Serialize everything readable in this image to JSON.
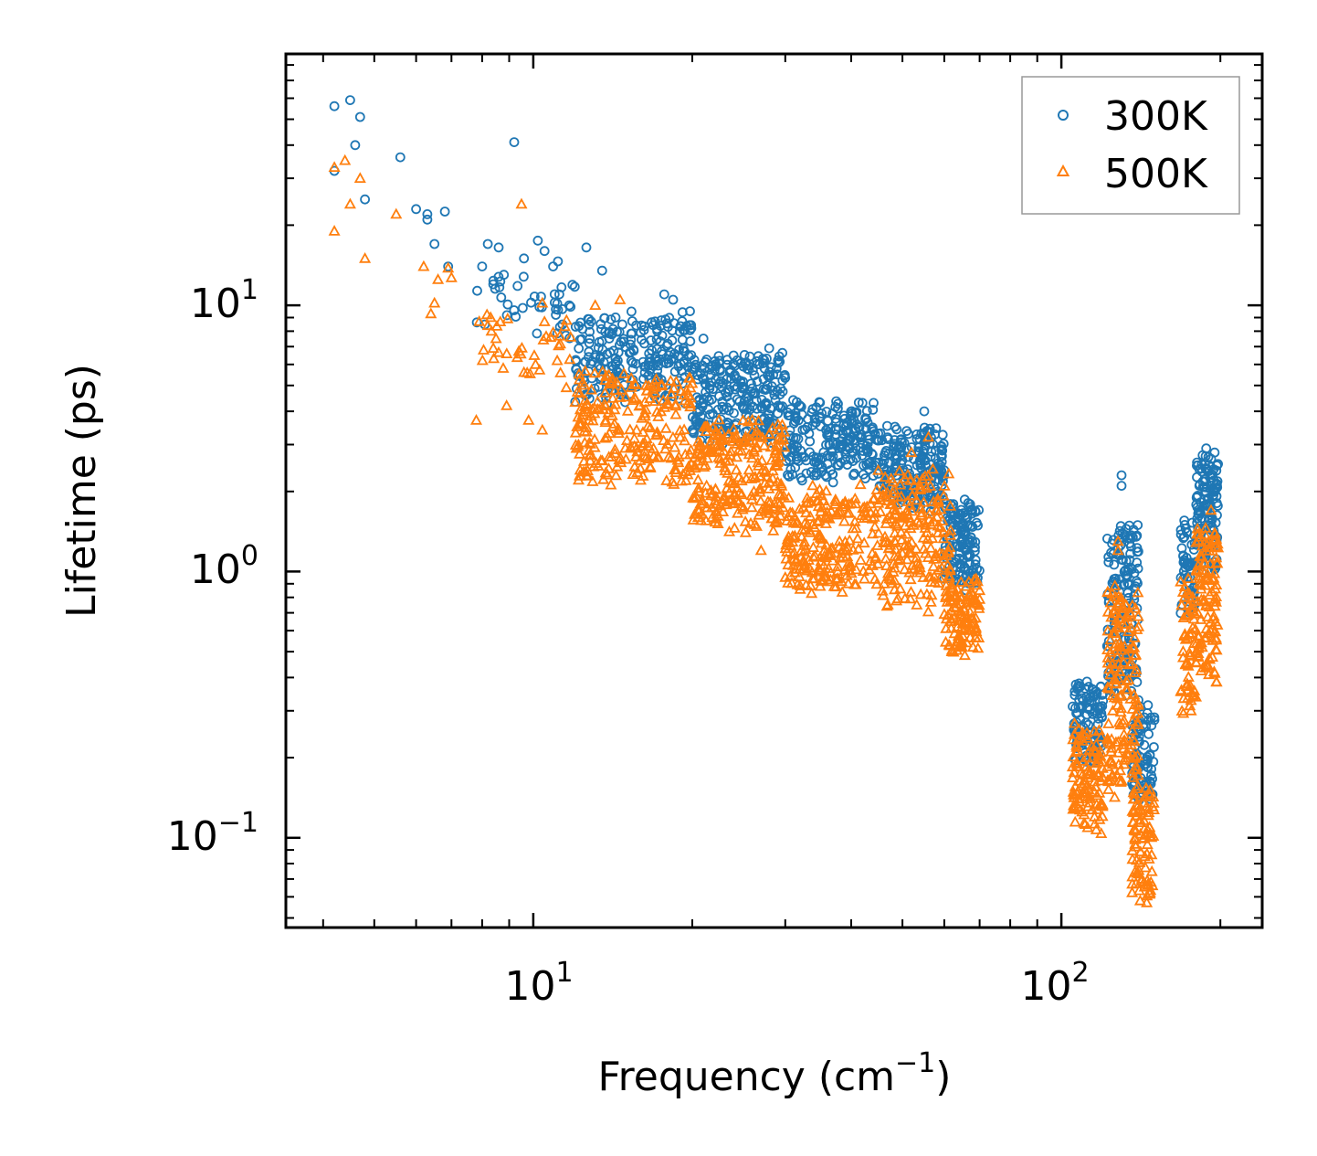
{
  "chart_data": {
    "type": "scatter",
    "xscale": "log",
    "yscale": "log",
    "xlabel": "Frequency (cm",
    "xlabel_sup": "−1",
    "xlabel_end": ")",
    "ylabel": "Lifetime (ps)",
    "xlim": [
      3.4,
      240
    ],
    "ylim": [
      0.046,
      88
    ],
    "x_ticks": [
      {
        "value": 10,
        "base": "10",
        "exp": "1"
      },
      {
        "value": 100,
        "base": "10",
        "exp": "2"
      }
    ],
    "y_ticks": [
      {
        "value": 0.1,
        "base": "10",
        "exp": "−1"
      },
      {
        "value": 1,
        "base": "10",
        "exp": "0"
      },
      {
        "value": 10,
        "base": "10",
        "exp": "1"
      }
    ],
    "legend_position": "top-right",
    "series": [
      {
        "name": "300K",
        "marker": "circle",
        "color": "#1f77b4",
        "points": [
          [
            4.2,
            56
          ],
          [
            4.5,
            59
          ],
          [
            4.7,
            51
          ],
          [
            4.6,
            40
          ],
          [
            4.2,
            32
          ],
          [
            4.8,
            25
          ],
          [
            5.6,
            36
          ],
          [
            6.0,
            23
          ],
          [
            6.3,
            22
          ],
          [
            6.5,
            17
          ],
          [
            6.8,
            22.5
          ],
          [
            6.9,
            14
          ],
          [
            6.3,
            21
          ],
          [
            8.0,
            14
          ],
          [
            8.2,
            17
          ],
          [
            8.4,
            12
          ],
          [
            8.6,
            16.5
          ],
          [
            9.2,
            41
          ],
          [
            9.6,
            15
          ],
          [
            10.2,
            17.5
          ],
          [
            10.5,
            16
          ],
          [
            10.9,
            14
          ],
          [
            11.2,
            11
          ],
          [
            11.7,
            10
          ],
          [
            12.6,
            16.5
          ],
          [
            13.5,
            13.5
          ],
          [
            17.7,
            11
          ],
          [
            18.4,
            10.5
          ],
          [
            19.8,
            9.5
          ],
          [
            21.0,
            7.5
          ],
          [
            29.0,
            5.5
          ],
          [
            32.0,
            4.2
          ],
          [
            40.0,
            3.6
          ],
          [
            42.0,
            4.3
          ],
          [
            45.0,
            3.3
          ],
          [
            55.0,
            4.0
          ],
          [
            55.0,
            3.3
          ],
          [
            60.0,
            2.4
          ],
          [
            66.0,
            0.85
          ],
          [
            108.0,
            0.38
          ],
          [
            130.0,
            2.3
          ],
          [
            130.0,
            2.1
          ],
          [
            140.0,
            0.25
          ],
          [
            147.0,
            0.14
          ],
          [
            171.0,
            1.1
          ],
          [
            188.0,
            2.9
          ],
          [
            195.0,
            2.8
          ]
        ],
        "bands": [
          {
            "x": [
              7.8,
              12
            ],
            "y": [
              7.5,
              14
            ],
            "n": 40
          },
          {
            "x": [
              12,
              20
            ],
            "y": [
              4.5,
              9
            ],
            "n": 240
          },
          {
            "x": [
              20,
              30
            ],
            "y": [
              3.2,
              6.5
            ],
            "n": 250
          },
          {
            "x": [
              30,
              45
            ],
            "y": [
              2.3,
              4.2
            ],
            "n": 220
          },
          {
            "x": [
              45,
              60
            ],
            "y": [
              1.8,
              3.3
            ],
            "n": 200
          },
          {
            "x": [
              60,
              70
            ],
            "y": [
              0.9,
              1.8
            ],
            "n": 140
          },
          {
            "x": [
              105,
              120
            ],
            "y": [
              0.2,
              0.37
            ],
            "n": 110
          },
          {
            "x": [
              122,
              140
            ],
            "y": [
              0.35,
              1.5
            ],
            "n": 160
          },
          {
            "x": [
              136,
              150
            ],
            "y": [
              0.14,
              0.3
            ],
            "n": 80
          },
          {
            "x": [
              168,
              180
            ],
            "y": [
              0.7,
              1.6
            ],
            "n": 50
          },
          {
            "x": [
              180,
              198
            ],
            "y": [
              1.0,
              2.7
            ],
            "n": 130
          }
        ]
      },
      {
        "name": "500K",
        "marker": "triangle",
        "color": "#ff7f0e",
        "points": [
          [
            4.2,
            33
          ],
          [
            4.4,
            35
          ],
          [
            4.5,
            24
          ],
          [
            4.7,
            30
          ],
          [
            4.2,
            19
          ],
          [
            4.8,
            15
          ],
          [
            5.5,
            22
          ],
          [
            6.2,
            14
          ],
          [
            6.4,
            9.3
          ],
          [
            6.5,
            10.2
          ],
          [
            6.6,
            12.5
          ],
          [
            6.9,
            13.8
          ],
          [
            7.0,
            12.7
          ],
          [
            7.9,
            8.7
          ],
          [
            8.2,
            8.4
          ],
          [
            8.4,
            6.9
          ],
          [
            8.5,
            7.5
          ],
          [
            8.9,
            4.2
          ],
          [
            7.8,
            3.7
          ],
          [
            9.5,
            24
          ],
          [
            10.1,
            6.0
          ],
          [
            10.4,
            10.2
          ],
          [
            9.6,
            5.6
          ],
          [
            9.8,
            3.7
          ],
          [
            10.4,
            3.4
          ],
          [
            11.1,
            6.2
          ],
          [
            12.1,
            3.5
          ],
          [
            13.1,
            10.0
          ],
          [
            14.6,
            10.5
          ],
          [
            20.5,
            2.6
          ],
          [
            27.0,
            1.2
          ],
          [
            30.0,
            0.95
          ],
          [
            38.0,
            1.3
          ],
          [
            45.0,
            2.4
          ],
          [
            52.0,
            2.8
          ],
          [
            56.0,
            3.2
          ],
          [
            62.0,
            0.5
          ],
          [
            68.0,
            0.52
          ],
          [
            108.0,
            0.14
          ],
          [
            112.0,
            0.2
          ],
          [
            128.0,
            1.3
          ],
          [
            128.0,
            1.2
          ],
          [
            142.0,
            0.07
          ],
          [
            141.0,
            0.058
          ],
          [
            171.0,
            0.8
          ],
          [
            176.0,
            0.3
          ],
          [
            192.0,
            1.7
          ]
        ],
        "bands": [
          {
            "x": [
              8,
              12
            ],
            "y": [
              5.2,
              9
            ],
            "n": 35
          },
          {
            "x": [
              12,
              20
            ],
            "y": [
              2.2,
              5.5
            ],
            "n": 240
          },
          {
            "x": [
              20,
              30
            ],
            "y": [
              1.5,
              3.5
            ],
            "n": 250
          },
          {
            "x": [
              30,
              45
            ],
            "y": [
              0.85,
              2.0
            ],
            "n": 220
          },
          {
            "x": [
              45,
              62
            ],
            "y": [
              0.75,
              2.3
            ],
            "n": 200
          },
          {
            "x": [
              60,
              70
            ],
            "y": [
              0.52,
              0.9
            ],
            "n": 110
          },
          {
            "x": [
              105,
              120
            ],
            "y": [
              0.11,
              0.25
            ],
            "n": 110
          },
          {
            "x": [
              122,
              140
            ],
            "y": [
              0.15,
              0.85
            ],
            "n": 170
          },
          {
            "x": [
              136,
              150
            ],
            "y": [
              0.06,
              0.15
            ],
            "n": 90
          },
          {
            "x": [
              168,
              180
            ],
            "y": [
              0.3,
              0.9
            ],
            "n": 60
          },
          {
            "x": [
              180,
              198
            ],
            "y": [
              0.4,
              1.5
            ],
            "n": 120
          }
        ]
      }
    ]
  }
}
